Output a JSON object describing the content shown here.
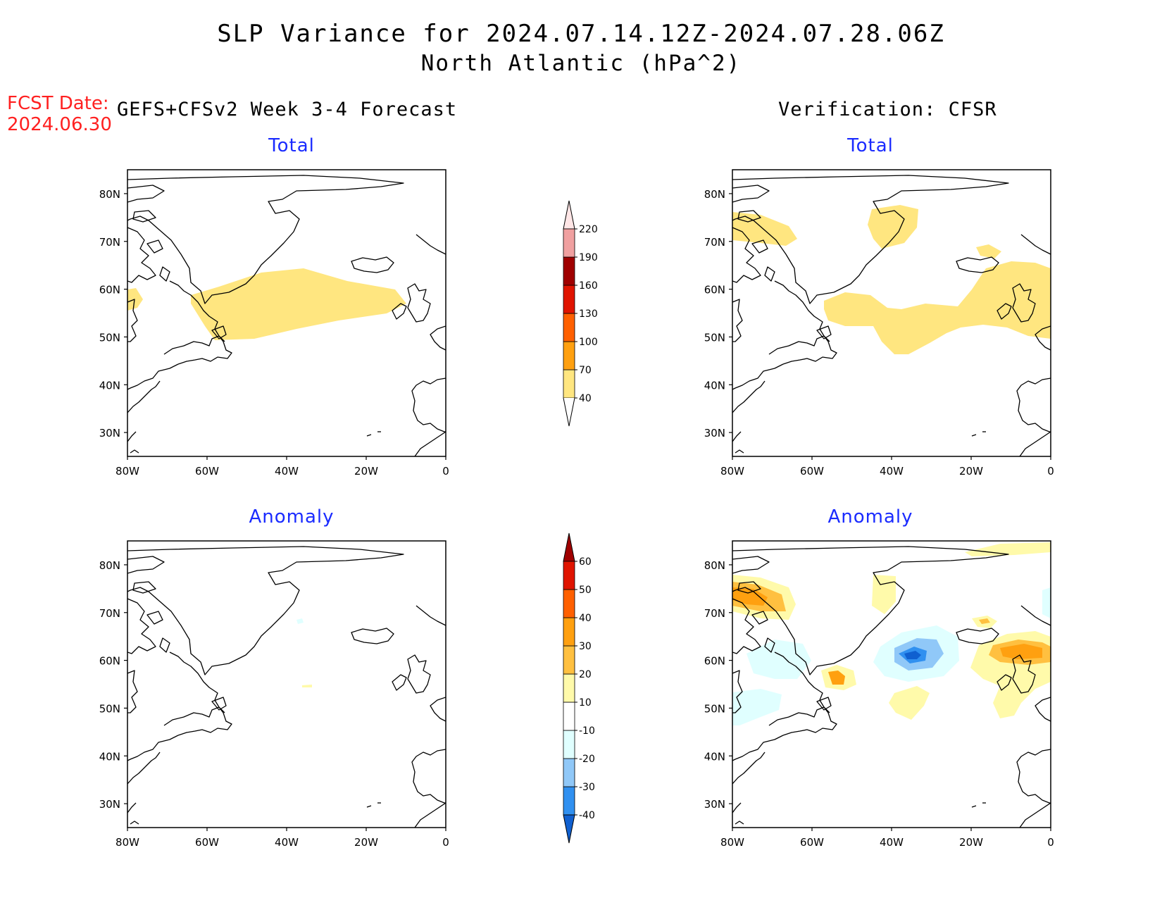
{
  "header": {
    "title": "SLP Variance for 2024.07.14.12Z-2024.07.28.06Z",
    "subtitle": "North Atlantic (hPa^2)",
    "fcst_label": "FCST Date:",
    "fcst_date": "2024.06.30"
  },
  "columns": {
    "left_title": "GEFS+CFSv2 Week 3-4 Forecast",
    "right_title": "Verification: CFSR"
  },
  "panels": {
    "forecast_total": {
      "title": "Total"
    },
    "verif_total": {
      "title": "Total"
    },
    "forecast_anomaly": {
      "title": "Anomaly"
    },
    "verif_anomaly": {
      "title": "Anomaly"
    }
  },
  "axes": {
    "lon_ticks": [
      "80W",
      "60W",
      "40W",
      "20W",
      "0"
    ],
    "lat_ticks": [
      "80N",
      "70N",
      "60N",
      "50N",
      "40N",
      "30N"
    ],
    "lon_range": [
      -80,
      0
    ],
    "lat_range": [
      25,
      85
    ]
  },
  "colorbars": {
    "total": {
      "levels": [
        "40",
        "70",
        "100",
        "130",
        "160",
        "190",
        "220"
      ],
      "colors": [
        "#ffe680",
        "#ffa010",
        "#ff6000",
        "#e01400",
        "#a00000",
        "#f0a0a0",
        "#ffe6e6"
      ]
    },
    "anomaly": {
      "levels": [
        "-40",
        "-30",
        "-20",
        "-10",
        "10",
        "20",
        "30",
        "40",
        "50",
        "60"
      ],
      "colors": [
        "#1060d0",
        "#3090f0",
        "#90c8f8",
        "#e0ffff",
        "#ffffff",
        "#fffaaa",
        "#ffc040",
        "#ffa010",
        "#ff6000",
        "#e01400",
        "#a00000"
      ]
    }
  },
  "chart_data": {
    "type": "heatmap",
    "note_units": "hPa^2",
    "forecast_total_regions": [
      {
        "level_min": 40,
        "area": "central North Atlantic band 50N-61N, 64W-10W"
      },
      {
        "level_min": 40,
        "area": "west edge near 80W, 55N-60N"
      }
    ],
    "verif_total_regions": [
      {
        "level_min": 40,
        "area": "Baffin Island 70N-75N, 80W-65W"
      },
      {
        "level_min": 40,
        "area": "east Greenland 70N-77N, 45W-35W"
      },
      {
        "level_min": 40,
        "area": "mid Atlantic 48N-60N, 55W-20W"
      },
      {
        "level_min": 40,
        "area": "northeast Atlantic 53N-66N, 20W-0"
      }
    ],
    "verif_anomaly_regions": [
      {
        "value_range": [
          20,
          40
        ],
        "area": "Baffin Bay 68N-76N, 80W-65W"
      },
      {
        "value_range": [
          20,
          30
        ],
        "area": "south of Greenland 54N-57N, 55W-50W"
      },
      {
        "value_range": [
          -40,
          -10
        ],
        "area": "Irminger Sea 56N-66N, 45W-25W"
      },
      {
        "value_range": [
          20,
          30
        ],
        "area": "north of UK 58N-64N, 15W-0"
      },
      {
        "value_range": [
          10,
          20
        ],
        "area": "mid Atlantic 47N-53N, 40W-30W"
      }
    ]
  }
}
